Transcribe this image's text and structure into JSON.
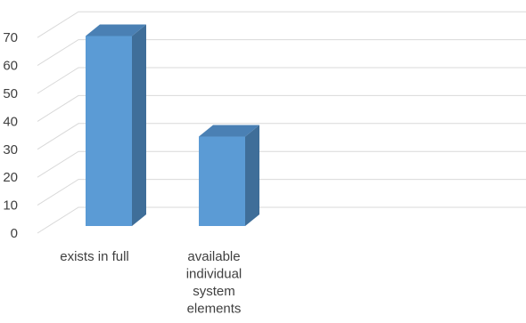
{
  "chart_data": {
    "type": "bar",
    "three_d": true,
    "categories": [
      [
        "exists in full"
      ],
      [
        "available",
        "individual",
        "system",
        "elements"
      ]
    ],
    "values": [
      68,
      32
    ],
    "ylim": [
      0,
      70
    ],
    "yticks": [
      0,
      10,
      20,
      30,
      40,
      50,
      60,
      70
    ],
    "title": "",
    "xlabel": "",
    "ylabel": "",
    "grid": true,
    "legend": "none",
    "colors": {
      "bar_front": "#5b9bd5",
      "bar_side": "#3f6e99",
      "bar_top": "#4a80b4",
      "grid": "#d9d9d9",
      "text": "#404040"
    }
  }
}
